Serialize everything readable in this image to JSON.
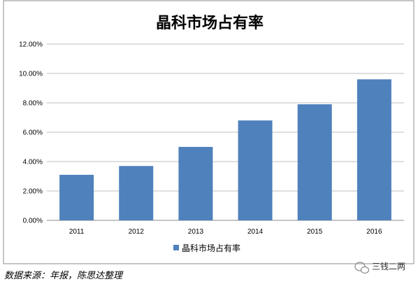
{
  "chart_data": {
    "type": "bar",
    "title": "晶科市场占有率",
    "categories": [
      "2011",
      "2012",
      "2013",
      "2014",
      "2015",
      "2016"
    ],
    "series": [
      {
        "name": "晶科市场占有率",
        "values": [
          0.031,
          0.037,
          0.05,
          0.068,
          0.079,
          0.096
        ]
      }
    ],
    "ylim": [
      0,
      0.12
    ],
    "yticks": [
      "0.00%",
      "2.00%",
      "4.00%",
      "6.00%",
      "8.00%",
      "10.00%",
      "12.00%"
    ],
    "grid": true,
    "legend_position": "bottom",
    "bar_color": "#4f81bd"
  },
  "footer": {
    "source_text": "数据来源：年报，陈思达整理",
    "watermark_text": "三钱二两"
  }
}
